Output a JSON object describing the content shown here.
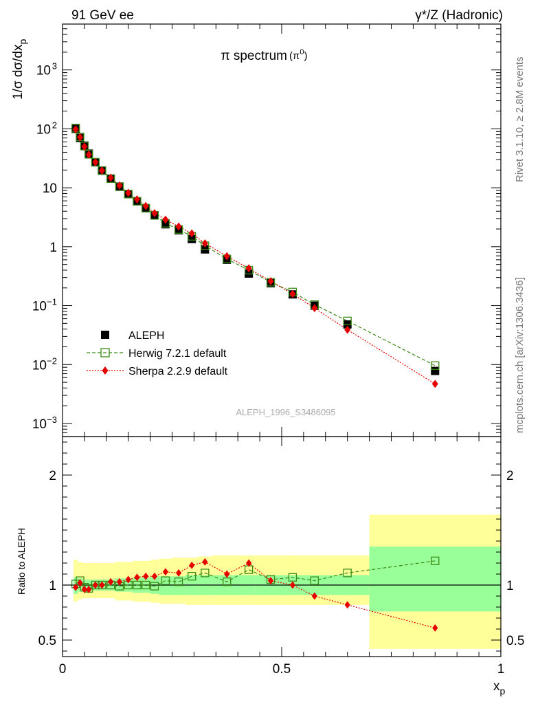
{
  "header": {
    "left": "91 GeV ee",
    "right": "γ*/Z (Hadronic)"
  },
  "side_labels": {
    "rivet": "Rivet 3.1.10, ≥ 2.8M events",
    "mcplots": "mcplots.cern.ch [arXiv:1306.3436]"
  },
  "chart_data": [
    {
      "type": "scatter",
      "panel": "main",
      "title": "π spectrum",
      "title_suffix": "(π0)",
      "ylabel": "1/σ dσ/dxp",
      "ylabel_sub": "p",
      "yscale": "log",
      "ylim": [
        0.0006,
        6000
      ],
      "xlim": [
        0,
        1
      ],
      "y_ticks": [
        {
          "value": 0.001,
          "label": "10",
          "exp": "-3"
        },
        {
          "value": 0.01,
          "label": "10",
          "exp": "-2"
        },
        {
          "value": 0.1,
          "label": "10",
          "exp": "-1"
        },
        {
          "value": 1,
          "label": "1",
          "exp": ""
        },
        {
          "value": 10,
          "label": "10",
          "exp": ""
        },
        {
          "value": 100,
          "label": "10",
          "exp": "2"
        },
        {
          "value": 1000,
          "label": "10",
          "exp": "3"
        }
      ],
      "watermark": "ALEPH_1996_S3486095",
      "legend": [
        "ALEPH",
        "Herwig 7.2.1 default",
        "Sherpa 2.2.9 default"
      ],
      "legend_position": "lower-left",
      "series": [
        {
          "name": "ALEPH",
          "color": "#000000",
          "marker": "filled-square",
          "x": [
            0.03,
            0.04,
            0.05,
            0.06,
            0.075,
            0.09,
            0.11,
            0.13,
            0.15,
            0.17,
            0.19,
            0.21,
            0.235,
            0.265,
            0.295,
            0.325,
            0.375,
            0.425,
            0.475,
            0.525,
            0.575,
            0.65,
            0.85
          ],
          "y": [
            100,
            70,
            52,
            38,
            27,
            19.5,
            14.3,
            10.5,
            7.8,
            5.9,
            4.5,
            3.4,
            2.4,
            1.9,
            1.35,
            0.9,
            0.6,
            0.35,
            0.24,
            0.155,
            0.1,
            0.048,
            0.0078
          ]
        },
        {
          "name": "Herwig 7.2.1 default",
          "color": "#3a8a16",
          "marker": "open-square",
          "line": "dashed",
          "x": [
            0.03,
            0.04,
            0.05,
            0.06,
            0.075,
            0.09,
            0.11,
            0.13,
            0.15,
            0.17,
            0.19,
            0.21,
            0.235,
            0.265,
            0.295,
            0.325,
            0.375,
            0.425,
            0.475,
            0.525,
            0.575,
            0.65,
            0.85
          ],
          "y": [
            103,
            73,
            51,
            37,
            27.2,
            19.6,
            14.3,
            10.4,
            7.8,
            5.9,
            4.5,
            3.4,
            2.5,
            1.96,
            1.5,
            1.04,
            0.62,
            0.4,
            0.25,
            0.17,
            0.104,
            0.055,
            0.0096
          ]
        },
        {
          "name": "Sherpa 2.2.9 default",
          "color": "#e50000",
          "marker": "filled-diamond",
          "line": "dotted",
          "x": [
            0.03,
            0.04,
            0.05,
            0.06,
            0.075,
            0.09,
            0.11,
            0.13,
            0.15,
            0.17,
            0.19,
            0.21,
            0.235,
            0.265,
            0.295,
            0.325,
            0.375,
            0.425,
            0.475,
            0.525,
            0.575,
            0.65,
            0.85
          ],
          "y": [
            98,
            72,
            50,
            36.5,
            27.2,
            19.6,
            14.8,
            10.9,
            8.2,
            6.35,
            4.9,
            3.7,
            2.88,
            2.2,
            1.68,
            1.14,
            0.69,
            0.43,
            0.26,
            0.158,
            0.091,
            0.039,
            0.0047
          ]
        }
      ]
    },
    {
      "type": "scatter",
      "panel": "ratio",
      "ylabel": "Ratio to ALEPH",
      "xlabel": "x",
      "xlabel_sub": "p",
      "xlim": [
        0,
        1
      ],
      "ylim": [
        0.35,
        2.35
      ],
      "x_ticks": [
        {
          "value": 0,
          "label": "0"
        },
        {
          "value": 0.5,
          "label": "0.5"
        },
        {
          "value": 1,
          "label": "1"
        }
      ],
      "y_ticks": [
        {
          "value": 0.5,
          "label": "0.5"
        },
        {
          "value": 1,
          "label": "1"
        },
        {
          "value": 2,
          "label": "2"
        }
      ],
      "bands": {
        "bin_edges": [
          0.025,
          0.035,
          0.045,
          0.055,
          0.065,
          0.085,
          0.1,
          0.12,
          0.14,
          0.16,
          0.18,
          0.2,
          0.22,
          0.25,
          0.28,
          0.31,
          0.34,
          0.41,
          0.44,
          0.51,
          0.54,
          0.61,
          0.7,
          1.0
        ],
        "stat_lo": [
          0.92,
          0.94,
          0.95,
          0.95,
          0.95,
          0.95,
          0.95,
          0.94,
          0.94,
          0.93,
          0.93,
          0.92,
          0.91,
          0.91,
          0.91,
          0.91,
          0.91,
          0.91,
          0.91,
          0.91,
          0.91,
          0.91,
          0.76
        ],
        "stat_hi": [
          1.07,
          1.06,
          1.05,
          1.05,
          1.05,
          1.05,
          1.05,
          1.06,
          1.06,
          1.07,
          1.07,
          1.08,
          1.08,
          1.08,
          1.09,
          1.09,
          1.09,
          1.09,
          1.09,
          1.09,
          1.09,
          1.09,
          1.35
        ],
        "total_lo": [
          0.85,
          0.87,
          0.88,
          0.88,
          0.88,
          0.88,
          0.88,
          0.86,
          0.86,
          0.85,
          0.85,
          0.84,
          0.83,
          0.83,
          0.82,
          0.82,
          0.82,
          0.82,
          0.82,
          0.82,
          0.82,
          0.82,
          0.42
        ],
        "total_hi": [
          1.23,
          1.21,
          1.2,
          1.2,
          1.2,
          1.2,
          1.2,
          1.21,
          1.21,
          1.22,
          1.22,
          1.23,
          1.24,
          1.25,
          1.25,
          1.26,
          1.27,
          1.27,
          1.27,
          1.27,
          1.27,
          1.27,
          1.64
        ],
        "stat_color": "#99ff99",
        "total_color": "#ffff99"
      },
      "series": [
        {
          "name": "Herwig 7.2.1 default",
          "color": "#3a8a16",
          "marker": "open-square",
          "line": "dashed",
          "x": [
            0.03,
            0.04,
            0.05,
            0.06,
            0.075,
            0.09,
            0.11,
            0.13,
            0.15,
            0.17,
            0.19,
            0.21,
            0.235,
            0.265,
            0.295,
            0.325,
            0.375,
            0.425,
            0.475,
            0.525,
            0.575,
            0.65,
            0.85
          ],
          "y": [
            1.01,
            1.04,
            0.98,
            0.97,
            1.0,
            1.0,
            1.0,
            0.99,
            1.0,
            1.0,
            1.0,
            0.99,
            1.04,
            1.03,
            1.08,
            1.11,
            1.03,
            1.14,
            1.05,
            1.07,
            1.04,
            1.11,
            1.22
          ]
        },
        {
          "name": "Sherpa 2.2.9 default",
          "color": "#e50000",
          "marker": "filled-diamond",
          "line": "dotted",
          "x": [
            0.03,
            0.04,
            0.05,
            0.06,
            0.075,
            0.09,
            0.11,
            0.13,
            0.15,
            0.17,
            0.19,
            0.21,
            0.235,
            0.265,
            0.295,
            0.325,
            0.375,
            0.425,
            0.475,
            0.525,
            0.575,
            0.65,
            0.85
          ],
          "y": [
            0.98,
            1.02,
            0.96,
            0.96,
            1.0,
            1.0,
            1.03,
            1.03,
            1.05,
            1.07,
            1.08,
            1.08,
            1.12,
            1.11,
            1.18,
            1.21,
            1.1,
            1.2,
            1.04,
            1.0,
            0.9,
            0.82,
            0.61
          ]
        }
      ]
    }
  ]
}
